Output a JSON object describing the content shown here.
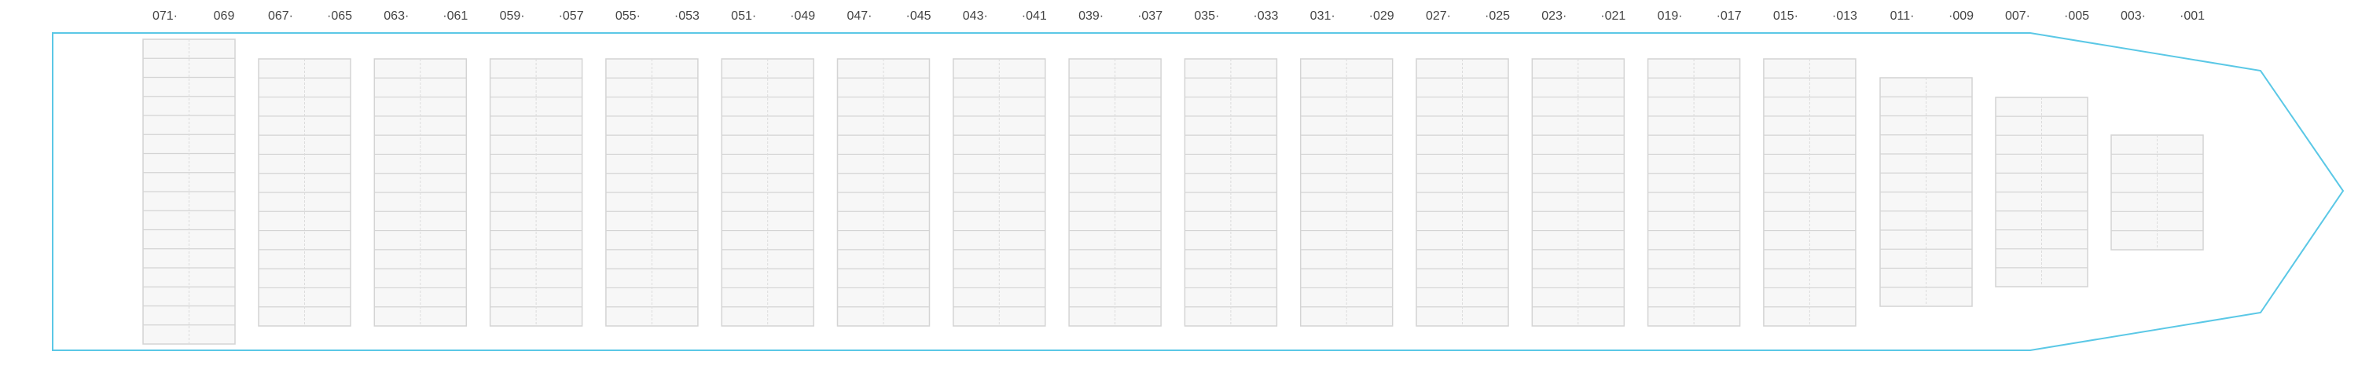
{
  "bays": [
    {
      "left": "071·",
      "right": "069"
    },
    {
      "left": "067·",
      "right": "·065"
    },
    {
      "left": "063·",
      "right": "·061"
    },
    {
      "left": "059·",
      "right": "·057"
    },
    {
      "left": "055·",
      "right": "·053"
    },
    {
      "left": "051·",
      "right": "·049"
    },
    {
      "left": "047·",
      "right": "·045"
    },
    {
      "left": "043·",
      "right": "·041"
    },
    {
      "left": "039·",
      "right": "·037"
    },
    {
      "left": "035·",
      "right": "·033"
    },
    {
      "left": "031·",
      "right": "·029"
    },
    {
      "left": "027·",
      "right": "·025"
    },
    {
      "left": "023·",
      "right": "·021"
    },
    {
      "left": "019·",
      "right": "·017"
    },
    {
      "left": "015·",
      "right": "·013"
    },
    {
      "left": "011·",
      "right": "·009"
    },
    {
      "left": "007·",
      "right": "·005"
    },
    {
      "left": "003·",
      "right": "·001"
    }
  ]
}
